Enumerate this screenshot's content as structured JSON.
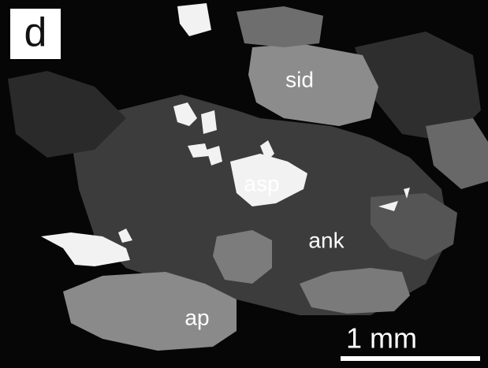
{
  "panel_label": "d",
  "labels": [
    "sid",
    "asp",
    "ank",
    "ap"
  ],
  "scale_bar": {
    "label": "1 mm"
  }
}
